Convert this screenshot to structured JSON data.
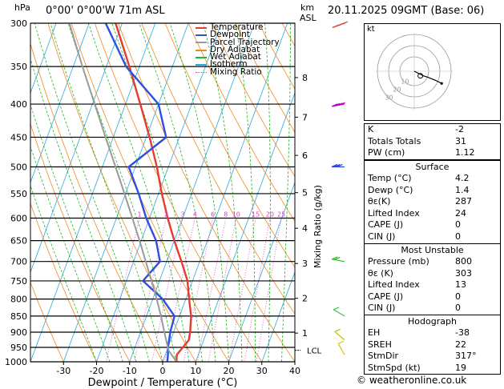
{
  "header": {
    "location": "0°00' 0°00'W  71m  ASL",
    "datetime": "20.11.2025  09GMT  (Base: 06)",
    "left_unit": "hPa",
    "right_unit_top": "km",
    "right_unit_bottom": "ASL"
  },
  "chart_data": {
    "type": "line",
    "subtype": "skew-T log-P sounding",
    "xlabel": "Dewpoint / Temperature (°C)",
    "ylabel_right": "Mixing Ratio (g/kg)",
    "x_ticks": [
      -30,
      -20,
      -10,
      0,
      10,
      20,
      30,
      40
    ],
    "pressure_levels": [
      300,
      350,
      400,
      450,
      500,
      550,
      600,
      650,
      700,
      750,
      800,
      850,
      900,
      950,
      1000
    ],
    "altitude_km": [
      {
        "km": 1,
        "p": 903
      },
      {
        "km": 2,
        "p": 798
      },
      {
        "km": 3,
        "p": 705
      },
      {
        "km": 4,
        "p": 622
      },
      {
        "km": 5,
        "p": 548
      },
      {
        "km": 6,
        "p": 480
      },
      {
        "km": 7,
        "p": 419
      },
      {
        "km": 8,
        "p": 364
      }
    ],
    "lcl": {
      "label": "LCL",
      "p": 960
    },
    "mixing_ratio_labels": [
      "1",
      "2",
      "3",
      "4",
      "6",
      "8",
      "10",
      "15",
      "20",
      "25"
    ],
    "mixing_ratio_g_per_kg": [
      1,
      2,
      3,
      4,
      6,
      8,
      10,
      15,
      20,
      25
    ],
    "legend": [
      {
        "name": "Temperature",
        "color": "#e83a2e"
      },
      {
        "name": "Dewpoint",
        "color": "#2e50e0"
      },
      {
        "name": "Parcel Trajectory",
        "color": "#9a9a9a"
      },
      {
        "name": "Dry Adiabat",
        "color": "#f08a1e"
      },
      {
        "name": "Wet Adiabat",
        "color": "#22b822"
      },
      {
        "name": "Isotherm",
        "color": "#2aa8e0"
      },
      {
        "name": "Mixing Ratio",
        "color": "#e040c0"
      }
    ],
    "series": [
      {
        "name": "Temperature",
        "points": [
          {
            "p": 1000,
            "t": 4.2
          },
          {
            "p": 975,
            "t": 3.5
          },
          {
            "p": 950,
            "t": 4.5
          },
          {
            "p": 925,
            "t": 5.5
          },
          {
            "p": 900,
            "t": 5.0
          },
          {
            "p": 850,
            "t": 3.5
          },
          {
            "p": 800,
            "t": 1.0
          },
          {
            "p": 750,
            "t": -1.5
          },
          {
            "p": 700,
            "t": -5.5
          },
          {
            "p": 650,
            "t": -10.0
          },
          {
            "p": 600,
            "t": -14.5
          },
          {
            "p": 550,
            "t": -19.0
          },
          {
            "p": 500,
            "t": -23.5
          },
          {
            "p": 450,
            "t": -29.0
          },
          {
            "p": 400,
            "t": -35.5
          },
          {
            "p": 350,
            "t": -43.0
          },
          {
            "p": 300,
            "t": -52.0
          }
        ]
      },
      {
        "name": "Dewpoint",
        "points": [
          {
            "p": 1000,
            "t": 1.4
          },
          {
            "p": 975,
            "t": 0.8
          },
          {
            "p": 950,
            "t": 0.0
          },
          {
            "p": 900,
            "t": -1.0
          },
          {
            "p": 850,
            "t": -1.5
          },
          {
            "p": 800,
            "t": -7.0
          },
          {
            "p": 750,
            "t": -15.0
          },
          {
            "p": 700,
            "t": -12.0
          },
          {
            "p": 650,
            "t": -15.5
          },
          {
            "p": 600,
            "t": -21.0
          },
          {
            "p": 550,
            "t": -26.0
          },
          {
            "p": 500,
            "t": -32.0
          },
          {
            "p": 450,
            "t": -24.0
          },
          {
            "p": 400,
            "t": -30.0
          },
          {
            "p": 350,
            "t": -44.0
          },
          {
            "p": 300,
            "t": -55.0
          }
        ]
      },
      {
        "name": "Parcel Trajectory",
        "points": [
          {
            "p": 1000,
            "t": 4.2
          },
          {
            "p": 960,
            "t": 0.5
          },
          {
            "p": 900,
            "t": -2.8
          },
          {
            "p": 850,
            "t": -5.6
          },
          {
            "p": 800,
            "t": -8.8
          },
          {
            "p": 750,
            "t": -12.4
          },
          {
            "p": 700,
            "t": -16.3
          },
          {
            "p": 650,
            "t": -20.5
          },
          {
            "p": 600,
            "t": -25.2
          },
          {
            "p": 550,
            "t": -30.3
          },
          {
            "p": 500,
            "t": -36.0
          },
          {
            "p": 450,
            "t": -42.3
          },
          {
            "p": 400,
            "t": -49.3
          },
          {
            "p": 350,
            "t": -57.2
          },
          {
            "p": 300,
            "t": -66.0
          }
        ]
      }
    ],
    "wind_barbs": [
      {
        "p": 300,
        "color": "#e04040",
        "dir": 250,
        "kt": 45
      },
      {
        "p": 400,
        "color": "#c000c0",
        "dir": 260,
        "kt": 35
      },
      {
        "p": 500,
        "color": "#2040e0",
        "dir": 270,
        "kt": 30
      },
      {
        "p": 700,
        "color": "#20c020",
        "dir": 280,
        "kt": 15
      },
      {
        "p": 850,
        "color": "#40c040",
        "dir": 300,
        "kt": 10
      },
      {
        "p": 925,
        "color": "#c0c000",
        "dir": 310,
        "kt": 8
      },
      {
        "p": 975,
        "color": "#e0c000",
        "dir": 330,
        "kt": 5
      }
    ]
  },
  "hodograph": {
    "label": "kt",
    "ring_labels": [
      "10",
      "20",
      "30"
    ],
    "trace_uv": [
      {
        "u": 0,
        "v": 0
      },
      {
        "u": 2,
        "v": -1
      },
      {
        "u": 6,
        "v": -3
      },
      {
        "u": 9,
        "v": -4
      },
      {
        "u": 14,
        "v": -6
      },
      {
        "u": 18,
        "v": -8
      }
    ],
    "storm_motion_uv": {
      "u": 4,
      "v": -3
    }
  },
  "indices": {
    "top": [
      {
        "label": "K",
        "value": "-2"
      },
      {
        "label": "Totals Totals",
        "value": "31"
      },
      {
        "label": "PW (cm)",
        "value": "1.12"
      }
    ],
    "surface": {
      "title": "Surface",
      "rows": [
        {
          "label": "Temp (°C)",
          "value": "4.2"
        },
        {
          "label": "Dewp (°C)",
          "value": "1.4"
        },
        {
          "label": "θε(K)",
          "value": "287"
        },
        {
          "label": "Lifted Index",
          "value": "24"
        },
        {
          "label": "CAPE (J)",
          "value": "0"
        },
        {
          "label": "CIN (J)",
          "value": "0"
        }
      ]
    },
    "most_unstable": {
      "title": "Most Unstable",
      "rows": [
        {
          "label": "Pressure (mb)",
          "value": "800"
        },
        {
          "label": "θε (K)",
          "value": "303"
        },
        {
          "label": "Lifted Index",
          "value": "13"
        },
        {
          "label": "CAPE (J)",
          "value": "0"
        },
        {
          "label": "CIN (J)",
          "value": "0"
        }
      ]
    },
    "hodograph": {
      "title": "Hodograph",
      "rows": [
        {
          "label": "EH",
          "value": "-38"
        },
        {
          "label": "SREH",
          "value": "22"
        },
        {
          "label": "StmDir",
          "value": "317°"
        },
        {
          "label": "StmSpd (kt)",
          "value": "19"
        }
      ]
    }
  },
  "footer": {
    "copyright": "© weatheronline.co.uk"
  }
}
